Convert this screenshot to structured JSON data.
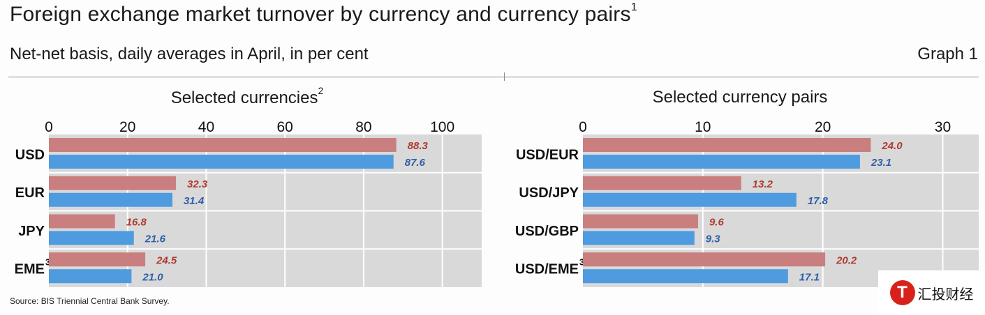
{
  "title": "Foreign exchange market turnover by currency and currency pairs",
  "title_note": "1",
  "subtitle": "Net-net basis, daily averages in April, in per cent",
  "graph_label": "Graph 1",
  "source": "Source: BIS Triennial Central Bank Survey.",
  "watermark": {
    "text": "汇投财经",
    "logo_letter": "T"
  },
  "chart_data": [
    {
      "type": "bar",
      "orientation": "horizontal",
      "title": "Selected currencies",
      "title_note": "2",
      "categories": [
        "USD",
        "EUR",
        "JPY",
        "EME"
      ],
      "category_notes": [
        "",
        "",
        "",
        "3"
      ],
      "series": [
        {
          "values": [
            88.3,
            32.3,
            16.8,
            24.5
          ],
          "color": "#c97f7f",
          "label_color": "#b03a2e"
        },
        {
          "values": [
            87.6,
            31.4,
            21.6,
            21.0
          ],
          "color": "#4f9be0",
          "label_color": "#2e5fa8"
        }
      ],
      "xlim": [
        0,
        110
      ],
      "ticks": [
        0,
        20,
        40,
        60,
        80,
        100
      ],
      "tick_labels": [
        "0",
        "20",
        "40",
        "60",
        "80",
        "100"
      ],
      "grid": true,
      "axis_position": "top"
    },
    {
      "type": "bar",
      "orientation": "horizontal",
      "title": "Selected currency pairs",
      "categories": [
        "USD/EUR",
        "USD/JPY",
        "USD/GBP",
        "USD/EME"
      ],
      "category_notes": [
        "",
        "",
        "",
        "3"
      ],
      "series": [
        {
          "values": [
            24.0,
            13.2,
            9.6,
            20.2
          ],
          "color": "#c97f7f",
          "label_color": "#b03a2e"
        },
        {
          "values": [
            23.1,
            17.8,
            9.3,
            17.1
          ],
          "color": "#4f9be0",
          "label_color": "#2e5fa8"
        }
      ],
      "xlim": [
        0,
        33
      ],
      "ticks": [
        0,
        10,
        20,
        30
      ],
      "tick_labels": [
        "0",
        "10",
        "20",
        "30"
      ],
      "grid": true,
      "axis_position": "top"
    }
  ]
}
